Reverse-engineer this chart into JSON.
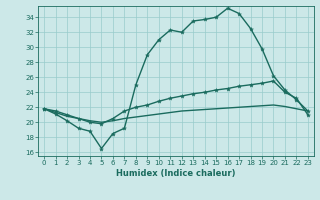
{
  "xlabel": "Humidex (Indice chaleur)",
  "bg_color": "#cce8e8",
  "grid_color": "#99cccc",
  "line_color": "#1a6b5e",
  "xlim": [
    -0.5,
    23.5
  ],
  "ylim": [
    15.5,
    35.5
  ],
  "yticks": [
    16,
    18,
    20,
    22,
    24,
    26,
    28,
    30,
    32,
    34
  ],
  "xticks": [
    0,
    1,
    2,
    3,
    4,
    5,
    6,
    7,
    8,
    9,
    10,
    11,
    12,
    13,
    14,
    15,
    16,
    17,
    18,
    19,
    20,
    21,
    22,
    23
  ],
  "line_peak_x": [
    0,
    1,
    2,
    3,
    4,
    5,
    6,
    7,
    8,
    9,
    10,
    11,
    12,
    13,
    14,
    15,
    16,
    17,
    18,
    19,
    20,
    21,
    22,
    23
  ],
  "line_peak_y": [
    21.8,
    21.1,
    20.2,
    19.2,
    18.8,
    16.5,
    18.5,
    19.2,
    25.0,
    29.0,
    31.0,
    32.3,
    32.0,
    33.5,
    33.7,
    34.0,
    35.2,
    34.5,
    32.5,
    29.8,
    26.2,
    24.3,
    23.0,
    21.5
  ],
  "line_mid_x": [
    0,
    1,
    2,
    3,
    4,
    5,
    6,
    7,
    8,
    9,
    10,
    11,
    12,
    13,
    14,
    15,
    16,
    17,
    18,
    19,
    20,
    21,
    22,
    23
  ],
  "line_mid_y": [
    21.8,
    21.5,
    21.0,
    20.5,
    20.0,
    19.8,
    20.5,
    21.5,
    22.0,
    22.3,
    22.8,
    23.2,
    23.5,
    23.8,
    24.0,
    24.3,
    24.5,
    24.8,
    25.0,
    25.2,
    25.5,
    24.0,
    23.2,
    21.0
  ],
  "line_flat_x": [
    0,
    1,
    2,
    3,
    4,
    5,
    6,
    7,
    8,
    9,
    10,
    11,
    12,
    13,
    14,
    15,
    16,
    17,
    18,
    19,
    20,
    21,
    22,
    23
  ],
  "line_flat_y": [
    21.8,
    21.3,
    20.8,
    20.5,
    20.2,
    20.0,
    20.2,
    20.5,
    20.7,
    20.9,
    21.1,
    21.3,
    21.5,
    21.6,
    21.7,
    21.8,
    21.9,
    22.0,
    22.1,
    22.2,
    22.3,
    22.1,
    21.8,
    21.5
  ]
}
